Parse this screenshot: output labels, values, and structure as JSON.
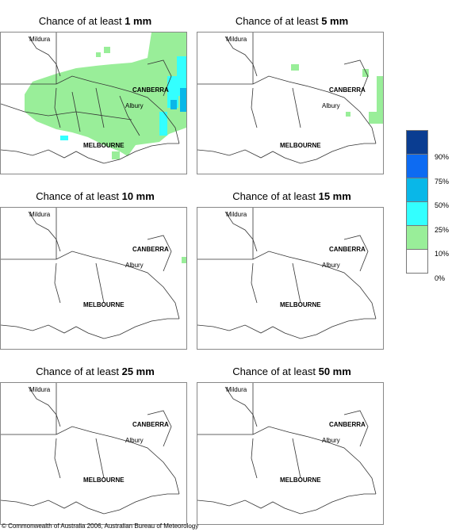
{
  "panels": [
    {
      "title_prefix": "Chance of at least ",
      "amount": "1 mm"
    },
    {
      "title_prefix": "Chance of at least ",
      "amount": "5 mm"
    },
    {
      "title_prefix": "Chance of at least ",
      "amount": "10 mm"
    },
    {
      "title_prefix": "Chance of at least ",
      "amount": "15 mm"
    },
    {
      "title_prefix": "Chance of at least ",
      "amount": "25 mm"
    },
    {
      "title_prefix": "Chance of at least ",
      "amount": "50 mm"
    }
  ],
  "places": {
    "mildura": "Mildura",
    "canberra": "CANBERRA",
    "albury": "Albury",
    "melbourne": "MELBOURNE"
  },
  "legend": {
    "colors": [
      "#0a3d91",
      "#0d6bf2",
      "#09b7e8",
      "#33ffff",
      "#99ee99",
      "#ffffff"
    ],
    "ticks": [
      "90%",
      "75%",
      "50%",
      "25%",
      "10%",
      "0%"
    ]
  },
  "footer": "© Commonwealth of Australia 2006, Australian Bureau of Meteorology"
}
